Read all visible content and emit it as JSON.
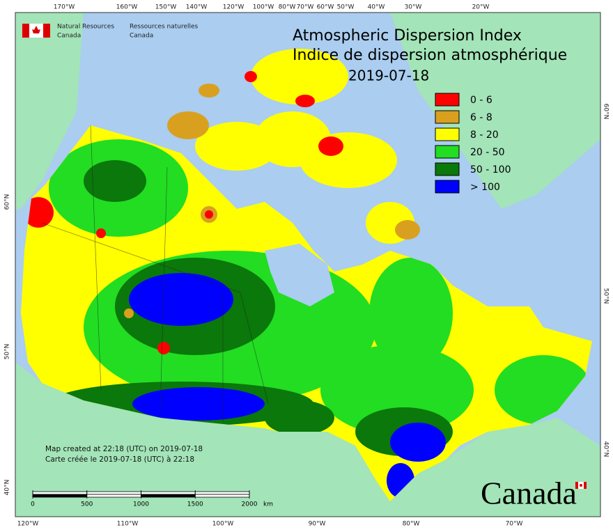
{
  "header": {
    "logo_en": [
      "Natural Resources",
      "Canada"
    ],
    "logo_fr": [
      "Ressources naturelles",
      "Canada"
    ]
  },
  "title": {
    "line1": "Atmospheric Dispersion Index",
    "line2": "Indice de dispersion atmosphérique",
    "date": "2019-07-18"
  },
  "legend": [
    {
      "label": "0 - 6",
      "color": "#ff0000"
    },
    {
      "label": "6 - 8",
      "color": "#d9a020"
    },
    {
      "label": "8 - 20",
      "color": "#ffff00"
    },
    {
      "label": "20 - 50",
      "color": "#22dd22"
    },
    {
      "label": "50 - 100",
      "color": "#0a780a"
    },
    {
      "label": "> 100",
      "color": "#0000ff"
    }
  ],
  "notes": [
    "Map created at 22:18 (UTC) on 2019-07-18",
    "Carte créée le 2019-07-18 (UTC) à 22:18"
  ],
  "scale_bar": {
    "ticks": [
      0,
      500,
      1000,
      1500,
      2000
    ],
    "unit": "km"
  },
  "graticule": {
    "top": [
      "170°W",
      "160°W",
      "150°W",
      "140°W",
      "120°W",
      "100°W",
      "80°W",
      "70°W",
      "60°W",
      "50°W",
      "40°W",
      "30°W",
      "20°W"
    ],
    "bottom": [
      "120°W",
      "110°W",
      "100°W",
      "90°W",
      "80°W",
      "70°W"
    ],
    "left": [
      "60°N",
      "50°N",
      "40°N"
    ],
    "right": [
      "60°N",
      "50°N",
      "40°N"
    ]
  },
  "wordmark": "Canada"
}
